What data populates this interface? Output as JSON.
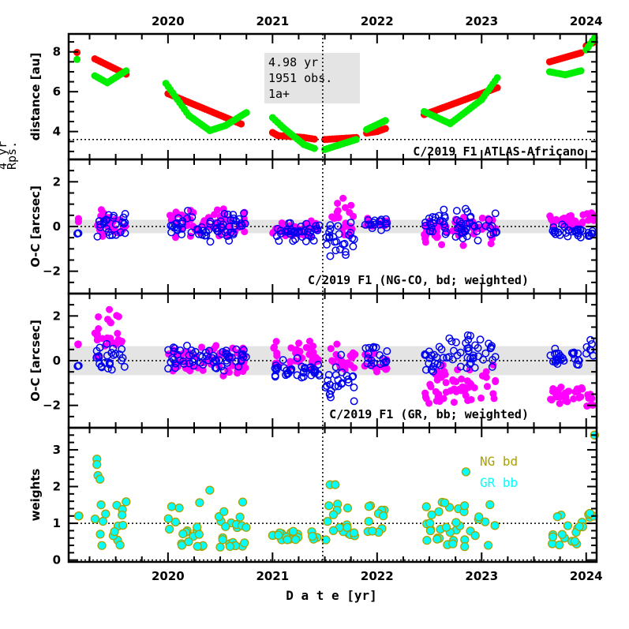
{
  "chart_data": [
    {
      "type": "scatter",
      "panel": "distance",
      "title": "C/2019 F1 ATLAS-Africano",
      "ylabel": "distance [au]",
      "xlabel": "",
      "xlim": [
        2019.05,
        2024.1
      ],
      "ylim": [
        2.6,
        8.9
      ],
      "yticks": [
        4,
        6,
        8
      ],
      "reference_line_y": 3.6,
      "info_box": [
        "4.98 yr",
        "1951 obs.",
        "1a+"
      ],
      "colors": {
        "heliocentric": "#ff0000",
        "geocentric": "#00ee00"
      },
      "series": [
        {
          "name": "heliocentric distance",
          "color": "#ff0000",
          "segments": [
            [
              [
                2019.13,
                7.97
              ]
            ],
            [
              [
                2019.3,
                7.65
              ],
              [
                2019.6,
                6.88
              ]
            ],
            [
              [
                2020.0,
                5.9
              ],
              [
                2020.7,
                4.38
              ]
            ],
            [
              [
                2021.0,
                3.95
              ],
              [
                2021.05,
                3.8
              ],
              [
                2021.3,
                3.7
              ],
              [
                2021.4,
                3.62
              ]
            ],
            [
              [
                2021.5,
                3.6
              ],
              [
                2021.8,
                3.7
              ]
            ],
            [
              [
                2021.9,
                3.92
              ],
              [
                2022.0,
                4.0
              ],
              [
                2022.08,
                4.15
              ]
            ],
            [
              [
                2022.45,
                4.85
              ],
              [
                2023.15,
                6.2
              ]
            ],
            [
              [
                2023.65,
                7.5
              ],
              [
                2023.95,
                7.95
              ]
            ],
            [
              [
                2024.0,
                8.3
              ],
              [
                2024.08,
                8.5
              ]
            ]
          ]
        },
        {
          "name": "geocentric distance",
          "color": "#00ee00",
          "segments": [
            [
              [
                2019.13,
                7.62
              ]
            ],
            [
              [
                2019.3,
                6.8
              ],
              [
                2019.42,
                6.45
              ],
              [
                2019.6,
                7.05
              ]
            ],
            [
              [
                2019.98,
                6.42
              ],
              [
                2020.2,
                4.8
              ],
              [
                2020.4,
                4.05
              ],
              [
                2020.55,
                4.3
              ],
              [
                2020.75,
                4.95
              ]
            ],
            [
              [
                2021.0,
                4.7
              ],
              [
                2021.1,
                4.2
              ],
              [
                2021.3,
                3.35
              ],
              [
                2021.4,
                3.15
              ]
            ],
            [
              [
                2021.5,
                3.1
              ],
              [
                2021.8,
                3.6
              ]
            ],
            [
              [
                2021.9,
                4.1
              ],
              [
                2022.08,
                4.55
              ]
            ],
            [
              [
                2022.45,
                5.0
              ],
              [
                2022.7,
                4.4
              ],
              [
                2023.0,
                5.6
              ],
              [
                2023.15,
                6.7
              ]
            ],
            [
              [
                2023.65,
                7.0
              ],
              [
                2023.8,
                6.85
              ],
              [
                2023.95,
                7.05
              ]
            ],
            [
              [
                2024.0,
                8.1
              ],
              [
                2024.08,
                8.7
              ]
            ]
          ]
        }
      ]
    },
    {
      "type": "scatter",
      "panel": "oc-ng",
      "title": "C/2019 F1 (NG-CO, bd; weighted)",
      "ylabel": "O-C [arcsec]",
      "xlim": [
        2019.05,
        2024.1
      ],
      "ylim": [
        -3,
        3
      ],
      "yticks": [
        -2,
        0,
        2
      ],
      "band": [
        -0.3,
        0.3
      ],
      "series": [
        {
          "name": "RA residuals",
          "color": "#ff00ff",
          "marker": "filled-circle",
          "clusters": [
            {
              "x": [
                2019.13,
                2019.15
              ],
              "y": [
                -1.0,
                1.1
              ]
            },
            {
              "x": [
                2019.3,
                2019.6
              ],
              "y": [
                -1.0,
                1.1
              ]
            },
            {
              "x": [
                2020.0,
                2020.75
              ],
              "y": [
                -0.7,
                1.0
              ]
            },
            {
              "x": [
                2021.0,
                2021.45
              ],
              "y": [
                -0.6,
                0.45
              ]
            },
            {
              "x": [
                2021.55,
                2021.8
              ],
              "y": [
                -0.9,
                1.5
              ]
            },
            {
              "x": [
                2021.88,
                2022.1
              ],
              "y": [
                -0.3,
                0.5
              ]
            },
            {
              "x": [
                2022.45,
                2023.15
              ],
              "y": [
                -1.0,
                0.9
              ]
            },
            {
              "x": [
                2023.65,
                2023.98
              ],
              "y": [
                -0.3,
                0.7
              ]
            },
            {
              "x": [
                2024.0,
                2024.08
              ],
              "y": [
                0.1,
                0.8
              ]
            }
          ]
        },
        {
          "name": "Dec residuals",
          "color": "#0000ee",
          "marker": "open-circle",
          "clusters": [
            {
              "x": [
                2019.13,
                2019.15
              ],
              "y": [
                -0.4,
                -0.2
              ]
            },
            {
              "x": [
                2019.3,
                2019.6
              ],
              "y": [
                -0.8,
                1.0
              ]
            },
            {
              "x": [
                2020.0,
                2020.75
              ],
              "y": [
                -0.8,
                0.9
              ]
            },
            {
              "x": [
                2021.0,
                2021.45
              ],
              "y": [
                -0.8,
                0.35
              ]
            },
            {
              "x": [
                2021.5,
                2021.8
              ],
              "y": [
                -1.6,
                0.4
              ]
            },
            {
              "x": [
                2021.88,
                2022.1
              ],
              "y": [
                -0.3,
                0.6
              ]
            },
            {
              "x": [
                2022.45,
                2023.15
              ],
              "y": [
                -0.9,
                1.0
              ]
            },
            {
              "x": [
                2023.65,
                2023.98
              ],
              "y": [
                -0.6,
                0.2
              ]
            },
            {
              "x": [
                2024.0,
                2024.08
              ],
              "y": [
                -0.6,
                -0.1
              ]
            }
          ]
        }
      ]
    },
    {
      "type": "scatter",
      "panel": "oc-gr",
      "title": "C/2019 F1 (GR, bb; weighted)",
      "ylabel": "O-C [arcsec]",
      "xlim": [
        2019.05,
        2024.1
      ],
      "ylim": [
        -3,
        3
      ],
      "yticks": [
        -2,
        0,
        2
      ],
      "band": [
        -0.65,
        0.65
      ],
      "series": [
        {
          "name": "RA residuals",
          "color": "#ff00ff",
          "marker": "filled-circle",
          "clusters": [
            {
              "x": [
                2019.13,
                2019.15
              ],
              "y": [
                0.7,
                0.8
              ]
            },
            {
              "x": [
                2019.3,
                2019.6
              ],
              "y": [
                -0.6,
                2.5
              ]
            },
            {
              "x": [
                2020.0,
                2020.75
              ],
              "y": [
                -1.1,
                1.1
              ]
            },
            {
              "x": [
                2021.0,
                2021.45
              ],
              "y": [
                -0.8,
                1.1
              ]
            },
            {
              "x": [
                2021.55,
                2021.8
              ],
              "y": [
                -1.0,
                1.0
              ]
            },
            {
              "x": [
                2021.88,
                2022.1
              ],
              "y": [
                -1.0,
                0.6
              ]
            },
            {
              "x": [
                2022.45,
                2023.15
              ],
              "y": [
                -2.7,
                0.3
              ]
            },
            {
              "x": [
                2023.65,
                2023.98
              ],
              "y": [
                -2.2,
                -0.8
              ]
            },
            {
              "x": [
                2024.0,
                2024.08
              ],
              "y": [
                -2.2,
                -1.3
              ]
            }
          ]
        },
        {
          "name": "Dec residuals",
          "color": "#0000ee",
          "marker": "open-circle",
          "clusters": [
            {
              "x": [
                2019.13,
                2019.15
              ],
              "y": [
                -0.3,
                -0.2
              ]
            },
            {
              "x": [
                2019.3,
                2019.6
              ],
              "y": [
                -0.9,
                1.1
              ]
            },
            {
              "x": [
                2020.0,
                2020.75
              ],
              "y": [
                -0.7,
                0.9
              ]
            },
            {
              "x": [
                2021.0,
                2021.45
              ],
              "y": [
                -1.1,
                0.2
              ]
            },
            {
              "x": [
                2021.5,
                2021.8
              ],
              "y": [
                -2.6,
                0.5
              ]
            },
            {
              "x": [
                2021.88,
                2022.1
              ],
              "y": [
                -0.6,
                1.0
              ]
            },
            {
              "x": [
                2022.45,
                2023.15
              ],
              "y": [
                -0.8,
                1.4
              ]
            },
            {
              "x": [
                2023.65,
                2023.98
              ],
              "y": [
                -0.4,
                0.7
              ]
            },
            {
              "x": [
                2024.0,
                2024.08
              ],
              "y": [
                -0.3,
                1.3
              ]
            }
          ]
        }
      ]
    },
    {
      "type": "scatter",
      "panel": "weights",
      "title": "",
      "ylabel": "weights",
      "xlabel": "D a t e [yr]",
      "xlim": [
        2019.05,
        2024.1
      ],
      "ylim": [
        -0.05,
        3.6
      ],
      "yticks": [
        0,
        1,
        2,
        3
      ],
      "reference_lines_y": [
        0,
        1
      ],
      "legend": [
        {
          "label": "NG bd",
          "color": "#aaa000"
        },
        {
          "label": "GR bb",
          "color": "#00ffff"
        }
      ],
      "legend_position": "top-right",
      "series": [
        {
          "name": "weights",
          "fill": "#00ffff",
          "edge": "#aaa000",
          "clusters": [
            {
              "x": [
                2019.13,
                2019.15
              ],
              "y": [
                1.2,
                1.2
              ]
            },
            {
              "x": [
                2019.3,
                2019.6
              ],
              "y": [
                0.3,
                1.7
              ]
            },
            {
              "x": [
                2020.0,
                2020.75
              ],
              "y": [
                0.35,
                1.6
              ]
            },
            {
              "x": [
                2021.0,
                2021.45
              ],
              "y": [
                0.55,
                0.85
              ]
            },
            {
              "x": [
                2021.5,
                2021.8
              ],
              "y": [
                0.55,
                1.6
              ]
            },
            {
              "x": [
                2021.88,
                2022.1
              ],
              "y": [
                0.75,
                1.6
              ]
            },
            {
              "x": [
                2022.45,
                2023.15
              ],
              "y": [
                0.35,
                1.6
              ]
            },
            {
              "x": [
                2023.65,
                2023.98
              ],
              "y": [
                0.4,
                1.4
              ]
            },
            {
              "x": [
                2024.0,
                2024.08
              ],
              "y": [
                1.0,
                1.35
              ]
            }
          ],
          "outliers": [
            [
              2019.32,
              2.75
            ],
            [
              2019.32,
              2.6
            ],
            [
              2019.33,
              2.3
            ],
            [
              2019.35,
              2.2
            ],
            [
              2020.4,
              1.9
            ],
            [
              2022.85,
              2.4
            ],
            [
              2021.55,
              2.05
            ],
            [
              2021.6,
              2.05
            ],
            [
              2024.08,
              3.4
            ]
          ]
        }
      ]
    }
  ],
  "x_axis": {
    "tick_years": [
      "2020",
      "2021",
      "2022",
      "2023",
      "2024"
    ],
    "label": "D a t e [yr]"
  },
  "overlap_label": [
    "4 yr",
    "Rps."
  ],
  "vertical_marker_year": 2021.48
}
